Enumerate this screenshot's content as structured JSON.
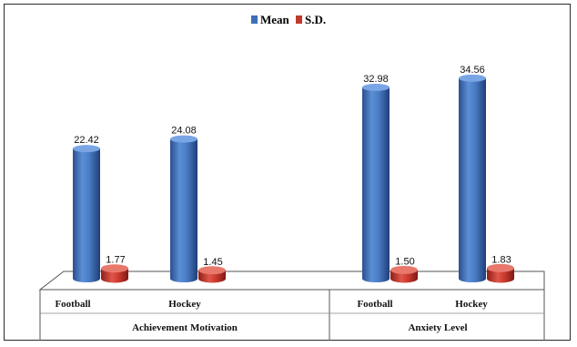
{
  "chart_data": {
    "type": "bar",
    "title": "",
    "xlabel": "",
    "ylabel": "",
    "ylim": [
      0,
      38
    ],
    "legend_position": "top-center",
    "grid": false,
    "groups": [
      {
        "name": "Achievement Motivation",
        "categories": [
          "Football",
          "Hockey"
        ]
      },
      {
        "name": "Anxiety Level",
        "categories": [
          "Football",
          "Hockey"
        ]
      }
    ],
    "series": [
      {
        "name": "Mean",
        "color": "#3d6fb8",
        "values": [
          22.42,
          24.08,
          32.98,
          34.56
        ],
        "labels": [
          "22.42",
          "24.08",
          "32.98",
          "34.56"
        ]
      },
      {
        "name": "S.D.",
        "color": "#c0392b",
        "values": [
          1.77,
          1.45,
          1.5,
          1.83
        ],
        "labels": [
          "1.77",
          "1.45",
          "1.50",
          "1.83"
        ]
      }
    ]
  }
}
